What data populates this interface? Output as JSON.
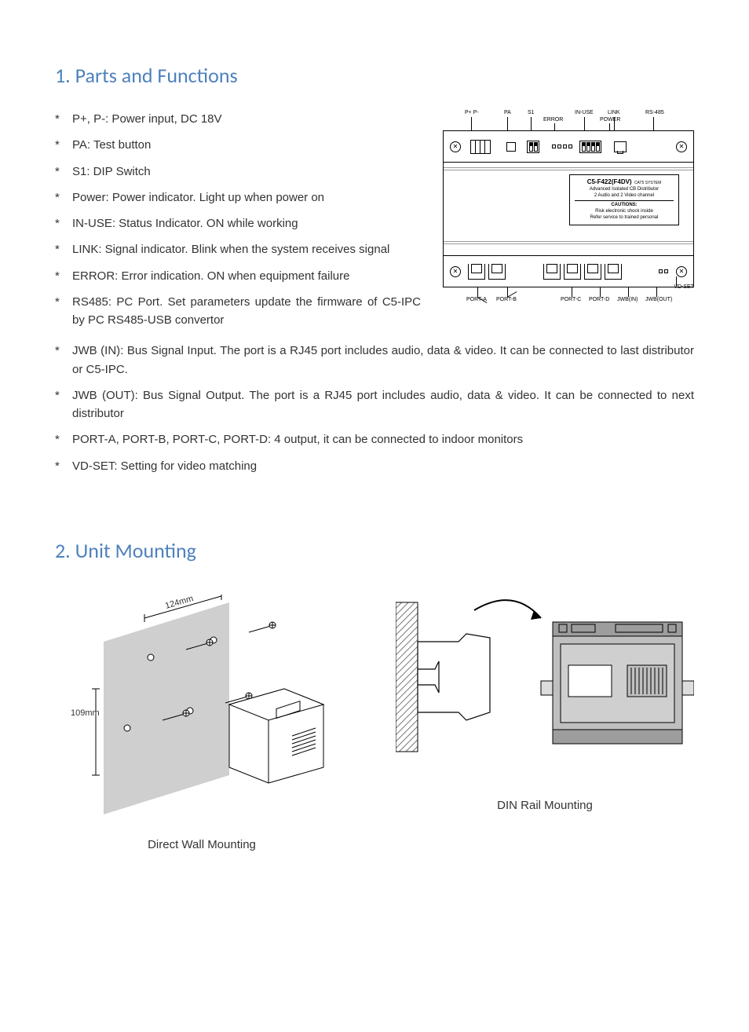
{
  "section1": {
    "heading": "1. Parts and Functions",
    "short_bullets": [
      "P+, P-: Power input, DC 18V",
      "PA: Test button",
      "S1: DIP Switch",
      "Power: Power indicator. Light up when power on",
      "IN-USE: Status Indicator. ON while working",
      "LINK: Signal indicator. Blink when the system receives signal",
      "ERROR: Error indication. ON when equipment failure",
      "RS485: PC Port. Set parameters update the firmware of C5-IPC by PC RS485-USB convertor"
    ],
    "full_bullets": [
      "JWB (IN): Bus Signal Input. The port is a RJ45 port includes audio, data & video. It can be connected to last distributor or C5-IPC.",
      "JWB (OUT): Bus Signal Output. The port is a RJ45 port includes audio, data & video. It can be connected to next distributor",
      "PORT-A, PORT-B, PORT-C, PORT-D: 4 output, it can be connected to indoor monitors",
      "VD-SET: Setting for video matching"
    ]
  },
  "diagram": {
    "top_labels": [
      "P+ P-",
      "PA",
      "S1",
      "ERROR",
      "IN-USE",
      "LINK",
      "POWER",
      "RS-485"
    ],
    "model": "C5-F422(F4DV)",
    "system_tag": "CAT5 SYSTEM",
    "desc1": "Advanced Isolated CB Distributor",
    "desc2": "2 Audio and 2 Video channel",
    "caution_head": "CAUTIONS:",
    "caution1": "Risk electronic shock inside",
    "caution2": "Refer service to trained personal",
    "bot_labels": [
      "PORT-A",
      "PORT-B",
      "PORT-C",
      "PORT-D",
      "JWB(IN)",
      "JWB(OUT)"
    ],
    "vdset": "VD-SET"
  },
  "section2": {
    "heading": "2.  Unit Mounting",
    "wall": {
      "dim_w": "124mm",
      "dim_h": "109mm",
      "caption": "Direct Wall Mounting"
    },
    "din": {
      "caption": "DIN Rail Mounting"
    }
  },
  "colors": {
    "heading": "#4e81bd",
    "text": "#333333",
    "line": "#000000",
    "panel_grey": "#cfcfcf",
    "device_grey": "#bfbfbf",
    "device_dark": "#9d9d9d",
    "hatch": "#777777"
  }
}
